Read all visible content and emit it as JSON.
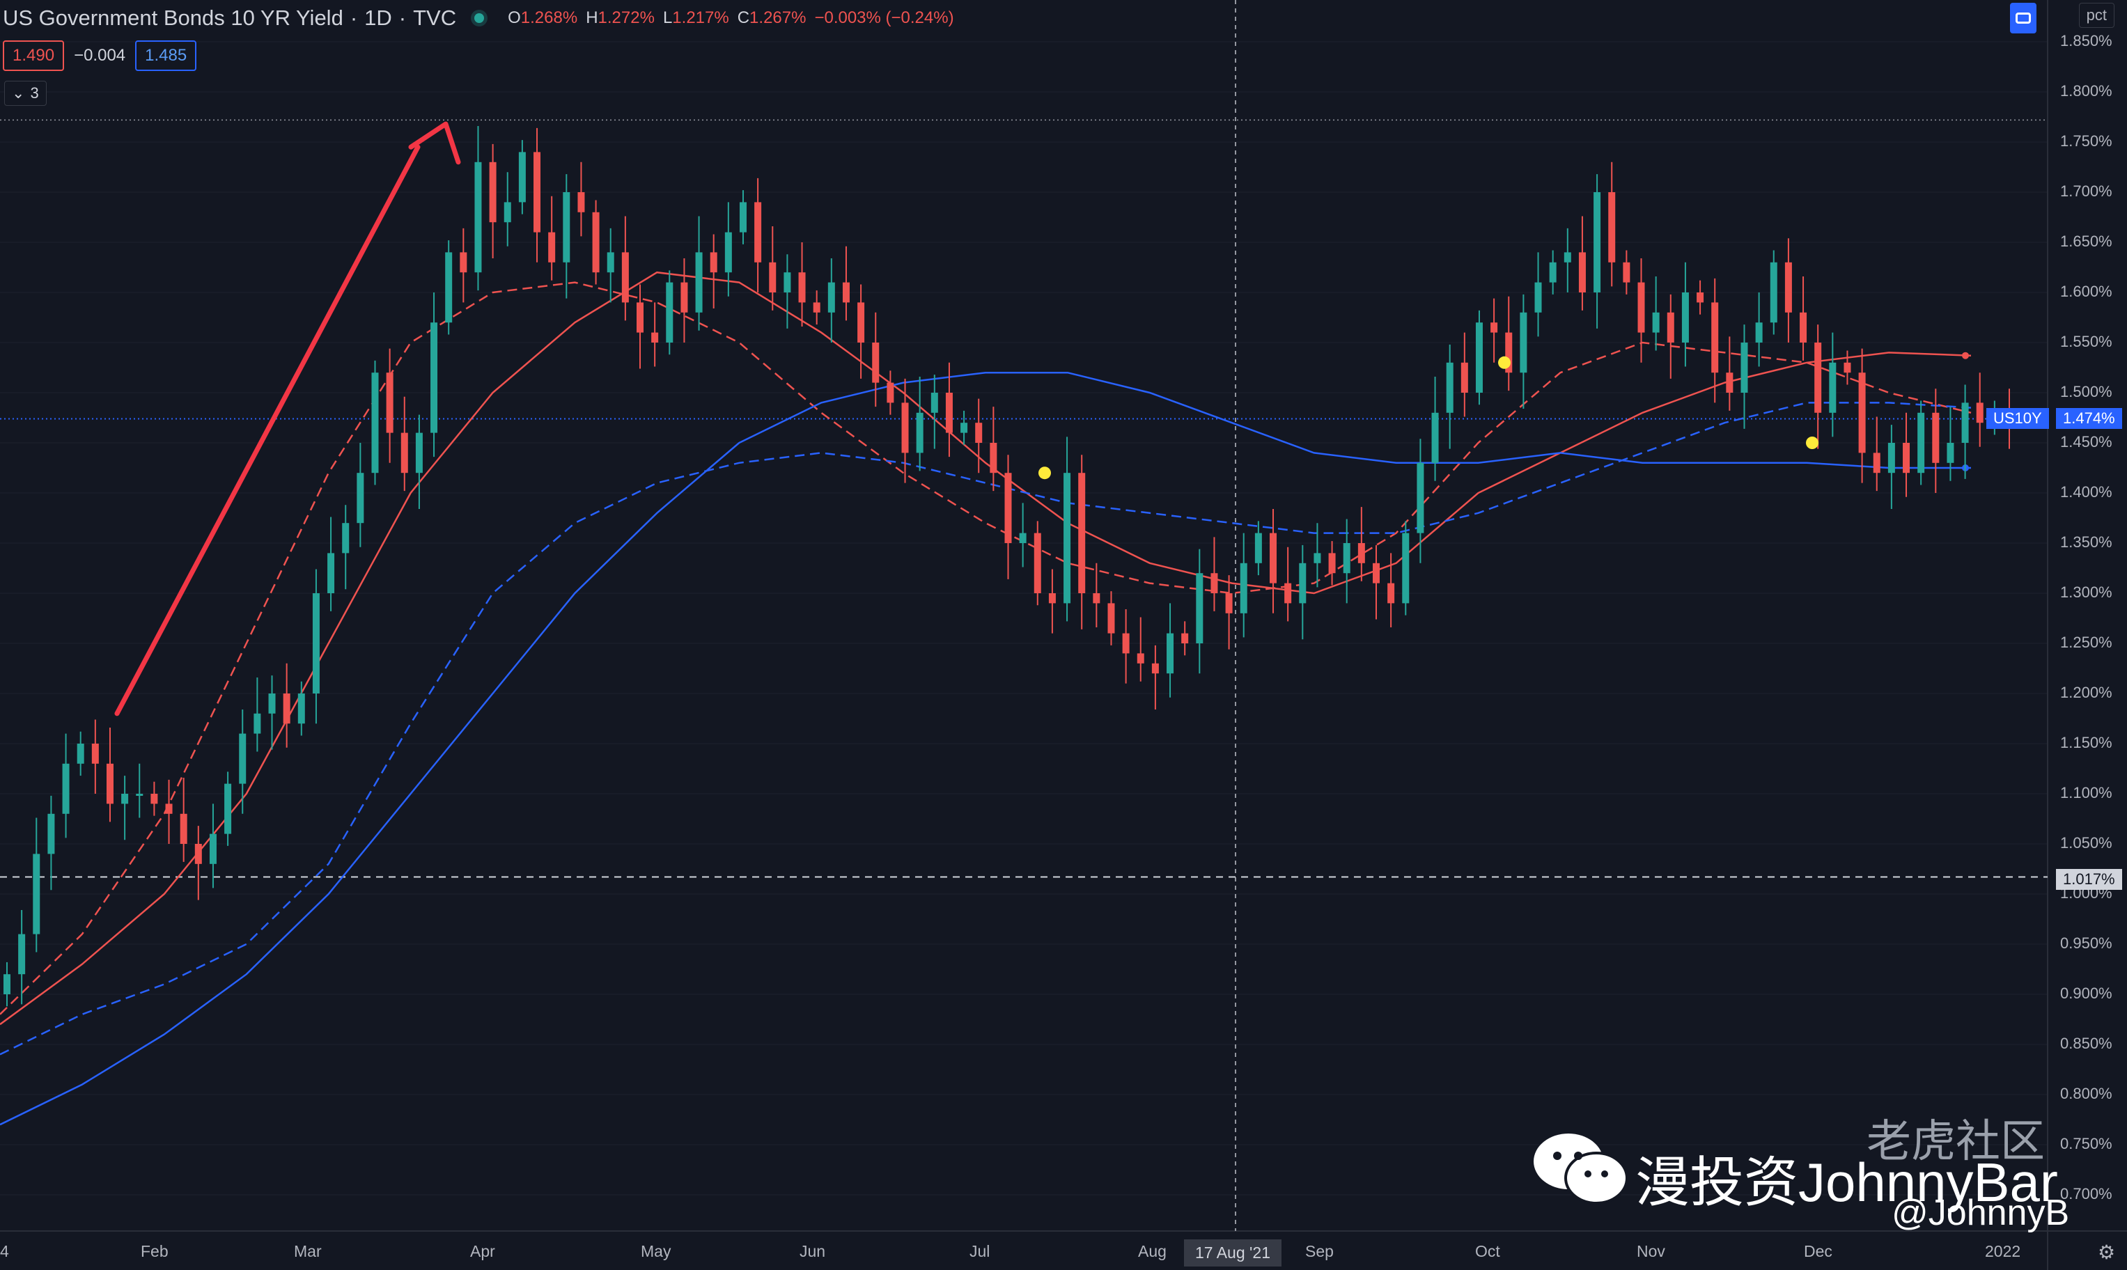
{
  "header": {
    "title": "US Government Bonds 10 YR Yield",
    "interval": "1D",
    "source": "TVC",
    "ohlc": {
      "o_label": "O",
      "o": "1.268%",
      "h_label": "H",
      "h": "1.272%",
      "l_label": "L",
      "l": "1.217%",
      "c_label": "C",
      "c": "1.267%",
      "change": "−0.003% (−0.24%)"
    }
  },
  "quote": {
    "bid": "1.490",
    "spread": "−0.004",
    "ask": "1.485"
  },
  "indicators_toggle": {
    "icon": "chevron-down-icon",
    "count": "3"
  },
  "scale_button": "pct",
  "symbol_tag": "US10Y",
  "last_price_tag": "1.474%",
  "crosshair_price_tag": "1.017%",
  "crosshair_date_tag": "17 Aug '21",
  "colors": {
    "up": "#26a69a",
    "down": "#ef5350",
    "ma_red": "#ef5350",
    "ma_blue": "#2962ff",
    "background": "#131722",
    "arrow": "#f23645",
    "marker": "#ffeb3b"
  },
  "price_axis": [
    "1.850%",
    "1.800%",
    "1.750%",
    "1.700%",
    "1.650%",
    "1.600%",
    "1.550%",
    "1.500%",
    "1.450%",
    "1.400%",
    "1.350%",
    "1.300%",
    "1.250%",
    "1.200%",
    "1.150%",
    "1.100%",
    "1.050%",
    "1.000%",
    "0.950%",
    "0.900%",
    "0.850%",
    "0.800%",
    "0.750%",
    "0.700%"
  ],
  "time_axis": [
    "4",
    "Feb",
    "Mar",
    "Apr",
    "May",
    "Jun",
    "Jul",
    "Aug",
    "Sep",
    "Oct",
    "Nov",
    "Dec",
    "2022"
  ],
  "watermark": {
    "icon": "wechat-icon",
    "text": "漫投资JohnnyBar",
    "brand": "老虎社区",
    "handle": "@JohnnyB"
  },
  "chart_data": {
    "type": "candlestick",
    "title": "US Government Bonds 10 YR Yield",
    "interval": "1D",
    "ylim": [
      0.68,
      1.86
    ],
    "x_range": [
      "2021-01-04",
      "2021-12-31"
    ],
    "last_price": 1.474,
    "crosshair": {
      "date": "2021-08-17",
      "value": 1.017
    },
    "series": [
      {
        "name": "close",
        "values": [
          0.92,
          0.96,
          1.04,
          1.08,
          1.13,
          1.15,
          1.13,
          1.09,
          1.1,
          1.1,
          1.09,
          1.08,
          1.05,
          1.03,
          1.06,
          1.11,
          1.16,
          1.18,
          1.2,
          1.17,
          1.2,
          1.3,
          1.34,
          1.37,
          1.42,
          1.52,
          1.46,
          1.42,
          1.46,
          1.57,
          1.64,
          1.62,
          1.73,
          1.67,
          1.69,
          1.74,
          1.66,
          1.63,
          1.7,
          1.68,
          1.62,
          1.64,
          1.59,
          1.56,
          1.55,
          1.61,
          1.58,
          1.64,
          1.62,
          1.66,
          1.69,
          1.63,
          1.6,
          1.62,
          1.59,
          1.58,
          1.61,
          1.59,
          1.55,
          1.51,
          1.49,
          1.44,
          1.48,
          1.5,
          1.46,
          1.47,
          1.45,
          1.42,
          1.35,
          1.36,
          1.3,
          1.29,
          1.42,
          1.3,
          1.29,
          1.26,
          1.24,
          1.23,
          1.22,
          1.26,
          1.25,
          1.32,
          1.3,
          1.28,
          1.33,
          1.36,
          1.31,
          1.29,
          1.33,
          1.34,
          1.32,
          1.35,
          1.33,
          1.31,
          1.29,
          1.36,
          1.43,
          1.48,
          1.53,
          1.5,
          1.57,
          1.56,
          1.52,
          1.58,
          1.61,
          1.63,
          1.64,
          1.6,
          1.7,
          1.63,
          1.61,
          1.56,
          1.58,
          1.55,
          1.6,
          1.59,
          1.52,
          1.5,
          1.55,
          1.57,
          1.63,
          1.58,
          1.55,
          1.48,
          1.53,
          1.52,
          1.44,
          1.42,
          1.45,
          1.42,
          1.48,
          1.43,
          1.45,
          1.49,
          1.47,
          1.48,
          1.474
        ]
      },
      {
        "name": "ma_short_red",
        "values": [
          0.88,
          0.96,
          1.08,
          1.25,
          1.42,
          1.55,
          1.6,
          1.61,
          1.59,
          1.55,
          1.48,
          1.42,
          1.37,
          1.33,
          1.31,
          1.3,
          1.31,
          1.36,
          1.45,
          1.52,
          1.55,
          1.54,
          1.53,
          1.5,
          1.48
        ]
      },
      {
        "name": "ma_long_red",
        "values": [
          0.87,
          0.93,
          1.0,
          1.1,
          1.25,
          1.4,
          1.5,
          1.57,
          1.62,
          1.61,
          1.56,
          1.5,
          1.43,
          1.37,
          1.33,
          1.31,
          1.3,
          1.33,
          1.4,
          1.44,
          1.48,
          1.51,
          1.53,
          1.54,
          1.537
        ]
      },
      {
        "name": "ma_short_blue",
        "values": [
          0.84,
          0.88,
          0.91,
          0.95,
          1.03,
          1.17,
          1.3,
          1.37,
          1.41,
          1.43,
          1.44,
          1.43,
          1.41,
          1.39,
          1.38,
          1.37,
          1.36,
          1.36,
          1.38,
          1.41,
          1.44,
          1.47,
          1.49,
          1.49,
          1.485
        ]
      },
      {
        "name": "ma_long_blue",
        "values": [
          0.77,
          0.81,
          0.86,
          0.92,
          1.0,
          1.1,
          1.2,
          1.3,
          1.38,
          1.45,
          1.49,
          1.51,
          1.52,
          1.52,
          1.5,
          1.47,
          1.44,
          1.43,
          1.43,
          1.44,
          1.43,
          1.43,
          1.43,
          1.425,
          1.425
        ]
      }
    ]
  }
}
